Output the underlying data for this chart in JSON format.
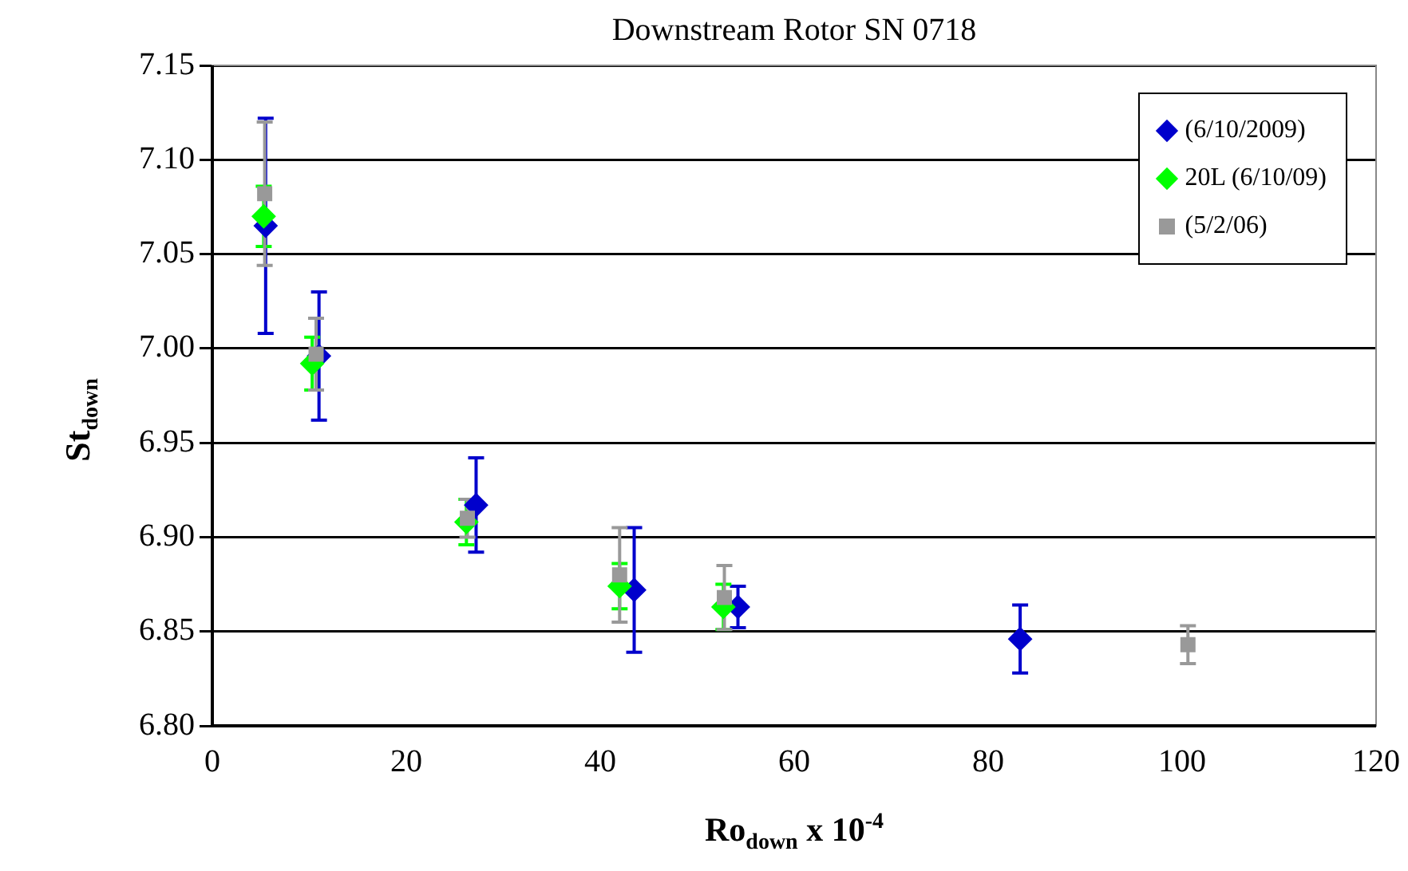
{
  "chart_data": {
    "type": "scatter",
    "title": "Downstream Rotor SN 0718",
    "xlabel": "Ro$_{down}$ x 10$^{-4}$",
    "ylabel": "St$_{down}$",
    "xlim": [
      0,
      120
    ],
    "xticks": [
      0,
      20,
      40,
      60,
      80,
      100,
      120
    ],
    "ylim": [
      6.8,
      7.15
    ],
    "yticks": [
      {
        "value": 6.8,
        "label": "6.80"
      },
      6.85,
      {
        "value": 6.9,
        "label": "6.90"
      },
      6.95,
      {
        "value": 7.0,
        "label": "7.00"
      },
      7.05,
      {
        "value": 7.1,
        "label": "7.10"
      },
      7.15
    ],
    "grid": "y",
    "legend": "top right",
    "series": [
      {
        "name": "(6/10/2009)",
        "color": "#0000cc",
        "marker": "diamond",
        "x": [
          5.5,
          11.0,
          27.2,
          43.5,
          54.2,
          83.3
        ],
        "values": [
          7.065,
          6.996,
          6.917,
          6.872,
          6.863,
          6.846
        ],
        "errors": [
          0.057,
          0.034,
          0.025,
          0.033,
          0.011,
          0.018
        ]
      },
      {
        "name": "20L (6/10/09)",
        "color": "#00ff00",
        "marker": "diamond",
        "x": [
          5.3,
          10.3,
          26.2,
          42.0,
          52.7
        ],
        "values": [
          7.07,
          6.992,
          6.908,
          6.874,
          6.863
        ],
        "errors": [
          0.016,
          0.014,
          0.012,
          0.012,
          0.012
        ]
      },
      {
        "name": "(5/2/06)",
        "color": "#999999",
        "marker": "square",
        "x": [
          5.4,
          10.7,
          26.3,
          42.0,
          52.8,
          100.6
        ],
        "values": [
          7.082,
          6.997,
          6.91,
          6.88,
          6.868,
          6.843
        ],
        "errors": [
          0.038,
          0.019,
          0.01,
          0.025,
          0.017,
          0.01
        ]
      }
    ]
  }
}
